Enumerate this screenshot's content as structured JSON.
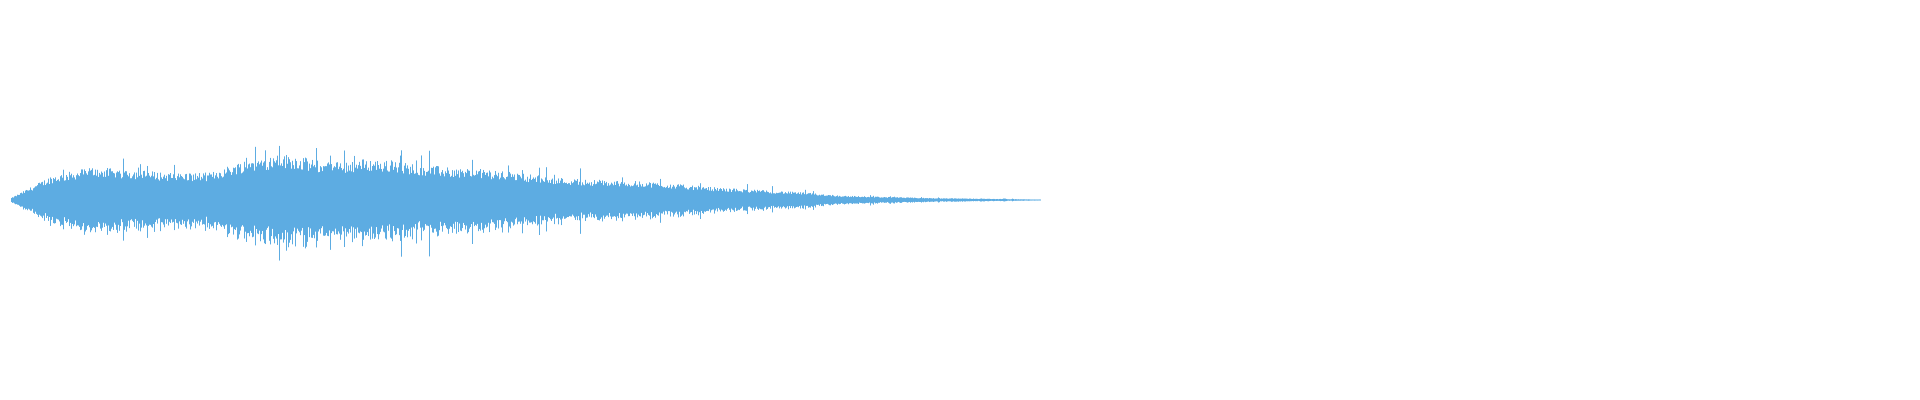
{
  "chart_data": {
    "type": "area",
    "title": "",
    "xlabel": "",
    "ylabel": "",
    "ylim": [
      -1,
      1
    ],
    "grid": false,
    "legend": "none",
    "color": "#5dace2",
    "background": "#ffffff",
    "description_of_series": "",
    "envelope_amplitude": [
      0.01,
      0.11,
      0.15,
      0.14,
      0.125,
      0.125,
      0.19,
      0.21,
      0.17,
      0.19,
      0.17,
      0.15,
      0.14,
      0.12,
      0.1,
      0.09,
      0.085,
      0.07,
      0.055,
      0.045,
      0.035,
      0.02,
      0.015,
      0.01,
      0.0075,
      0.005,
      0.0025
    ]
  }
}
